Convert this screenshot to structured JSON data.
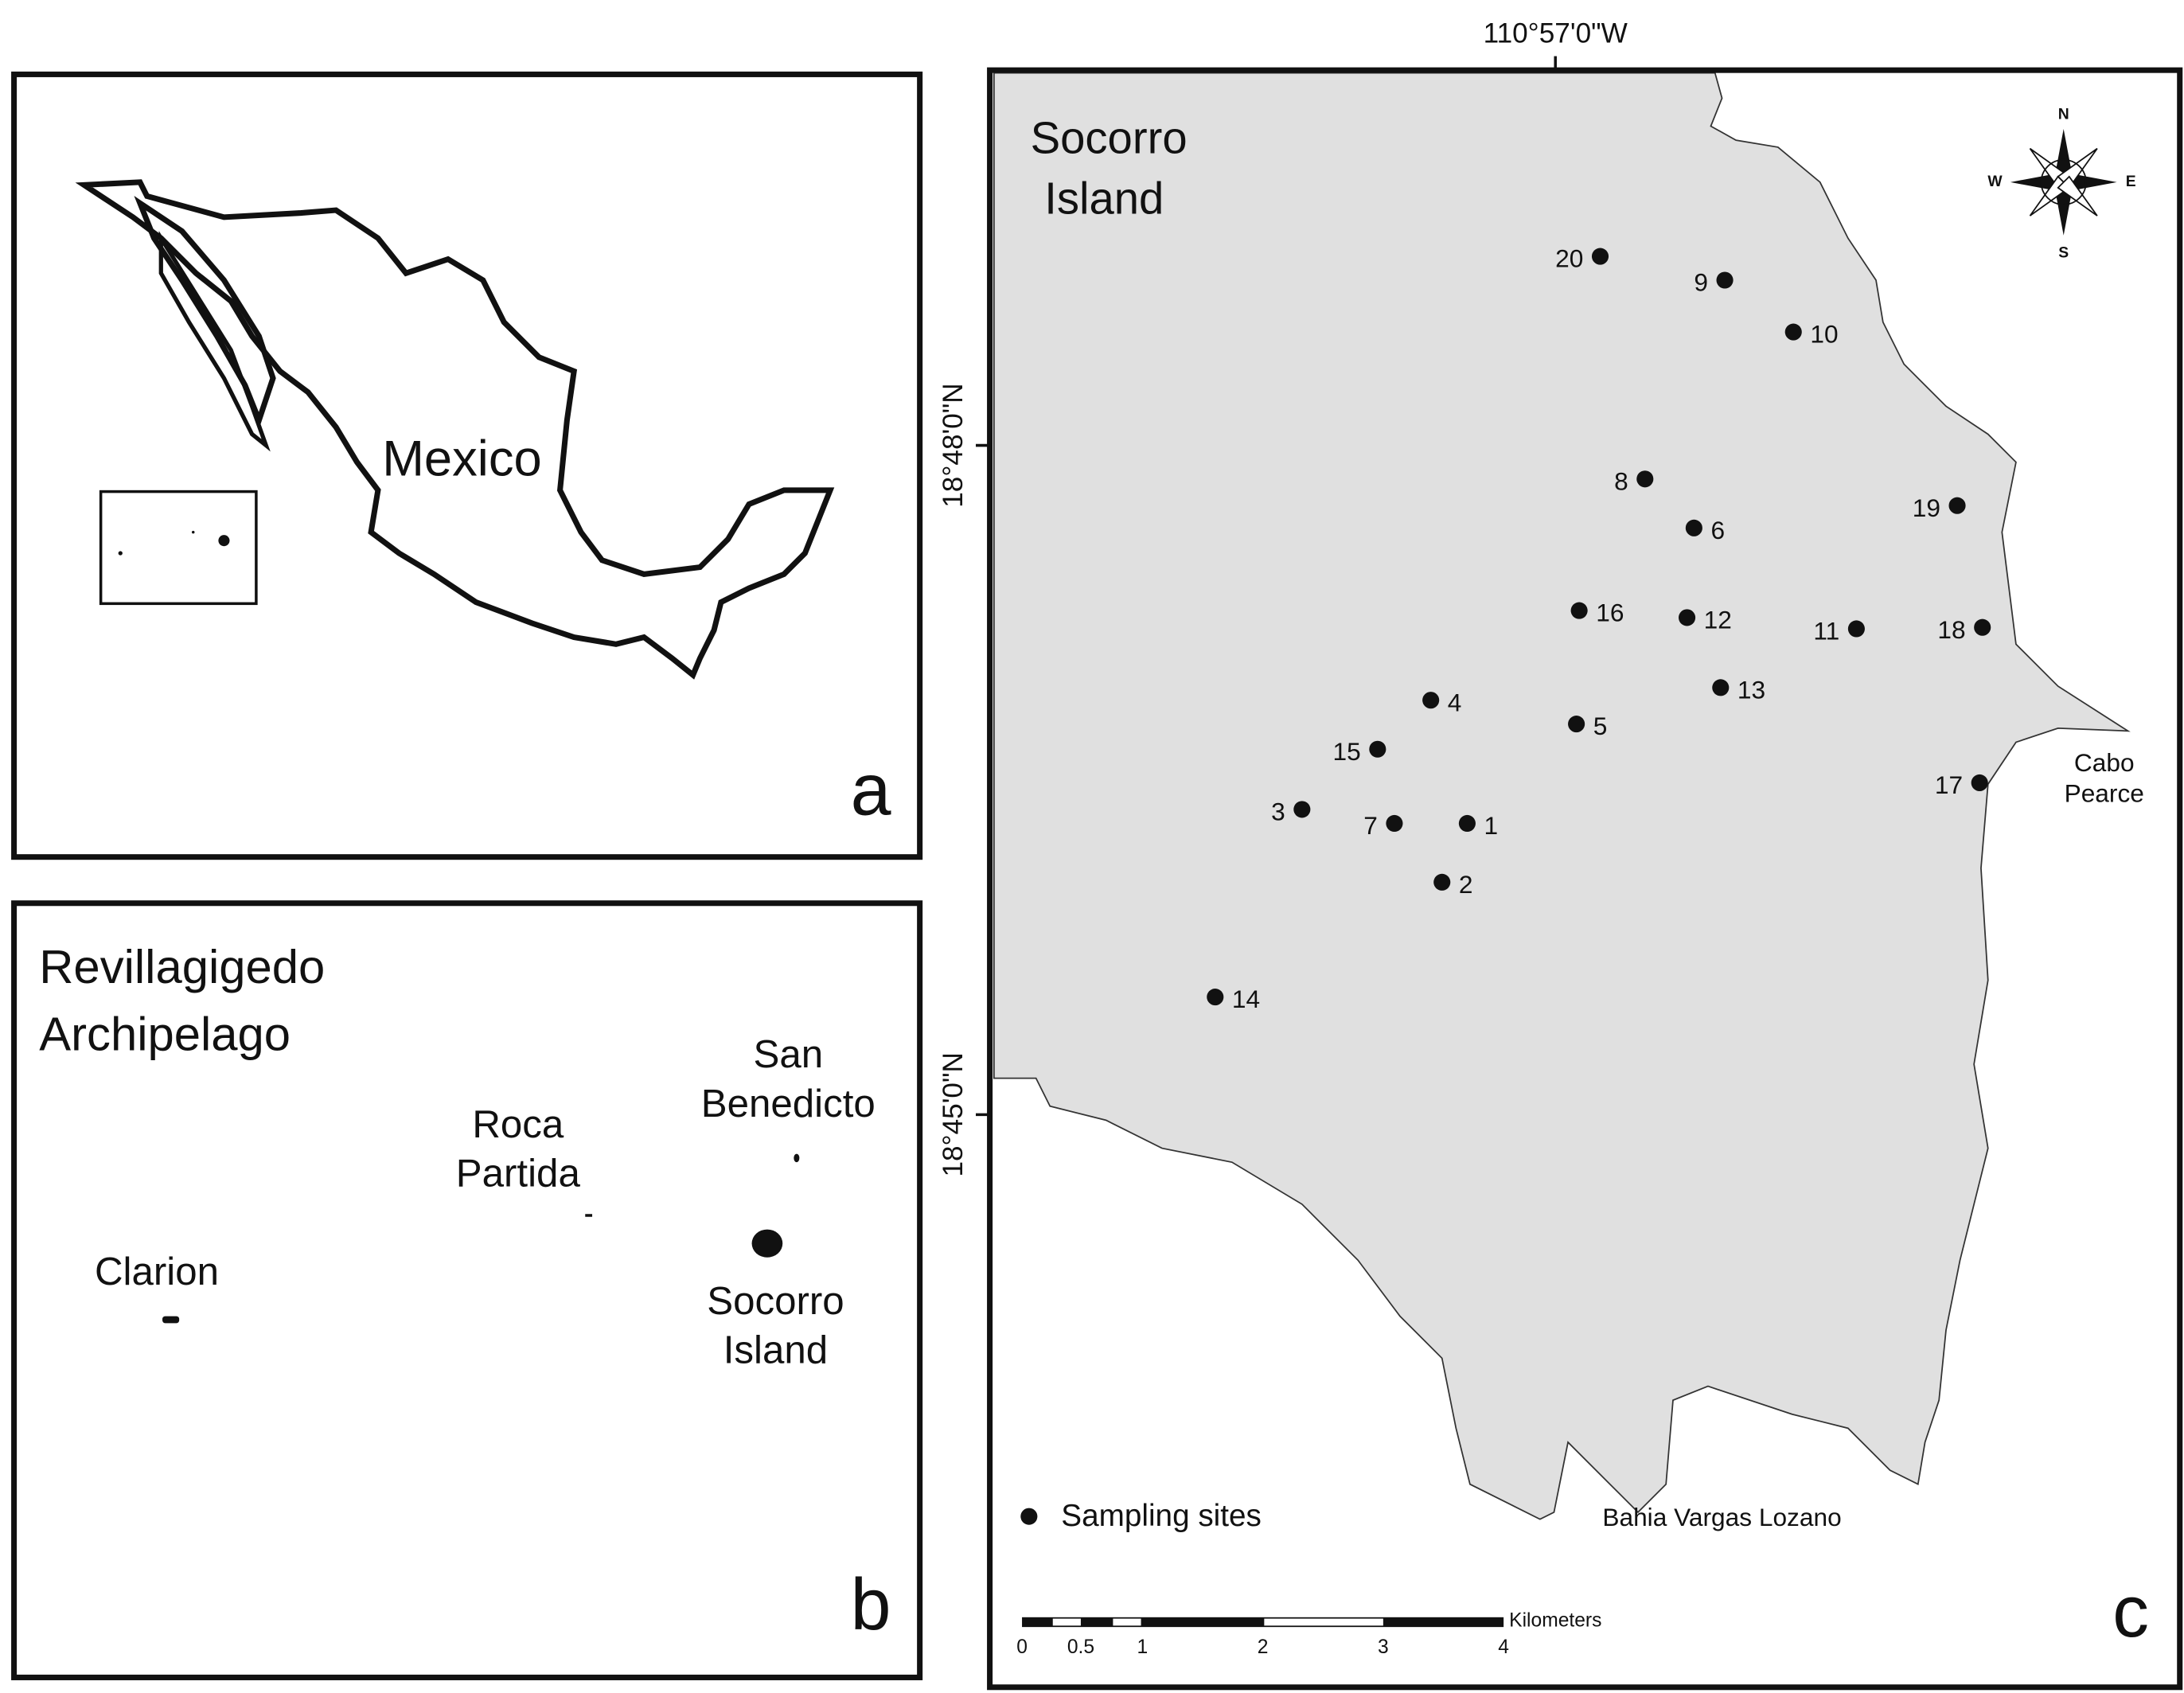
{
  "panel_a": {
    "country_label": "Mexico",
    "panel_letter": "a"
  },
  "panel_b": {
    "title_lines": [
      "Revillagigedo",
      "Archipelago"
    ],
    "islands": [
      {
        "name_lines": [
          "San",
          "Benedicto"
        ]
      },
      {
        "name_lines": [
          "Roca",
          "Partida"
        ]
      },
      {
        "name_lines": [
          "Clarion"
        ]
      },
      {
        "name_lines": [
          "Socorro",
          "Island"
        ]
      }
    ],
    "panel_letter": "b"
  },
  "panel_c": {
    "title_lines": [
      "Socorro",
      "Island"
    ],
    "longitude_label": "110°57'0\"W",
    "latitude_labels": [
      "18°48'0\"N",
      "18°45'0\"N"
    ],
    "compass": {
      "north": "N",
      "east": "E",
      "south": "S",
      "west": "W"
    },
    "sites": [
      "1",
      "2",
      "3",
      "4",
      "5",
      "6",
      "7",
      "8",
      "9",
      "10",
      "11",
      "12",
      "13",
      "14",
      "15",
      "16",
      "17",
      "18",
      "19",
      "20"
    ],
    "places": [
      {
        "name_lines": [
          "Cabo",
          "Pearce"
        ]
      },
      {
        "name_lines": [
          "Bahia Vargas Lozano"
        ]
      }
    ],
    "legend": "Sampling sites",
    "scale_bar": {
      "ticks": [
        "0",
        "0.5",
        "1",
        "2",
        "3",
        "4"
      ],
      "unit": "Kilometers"
    },
    "panel_letter": "c"
  }
}
